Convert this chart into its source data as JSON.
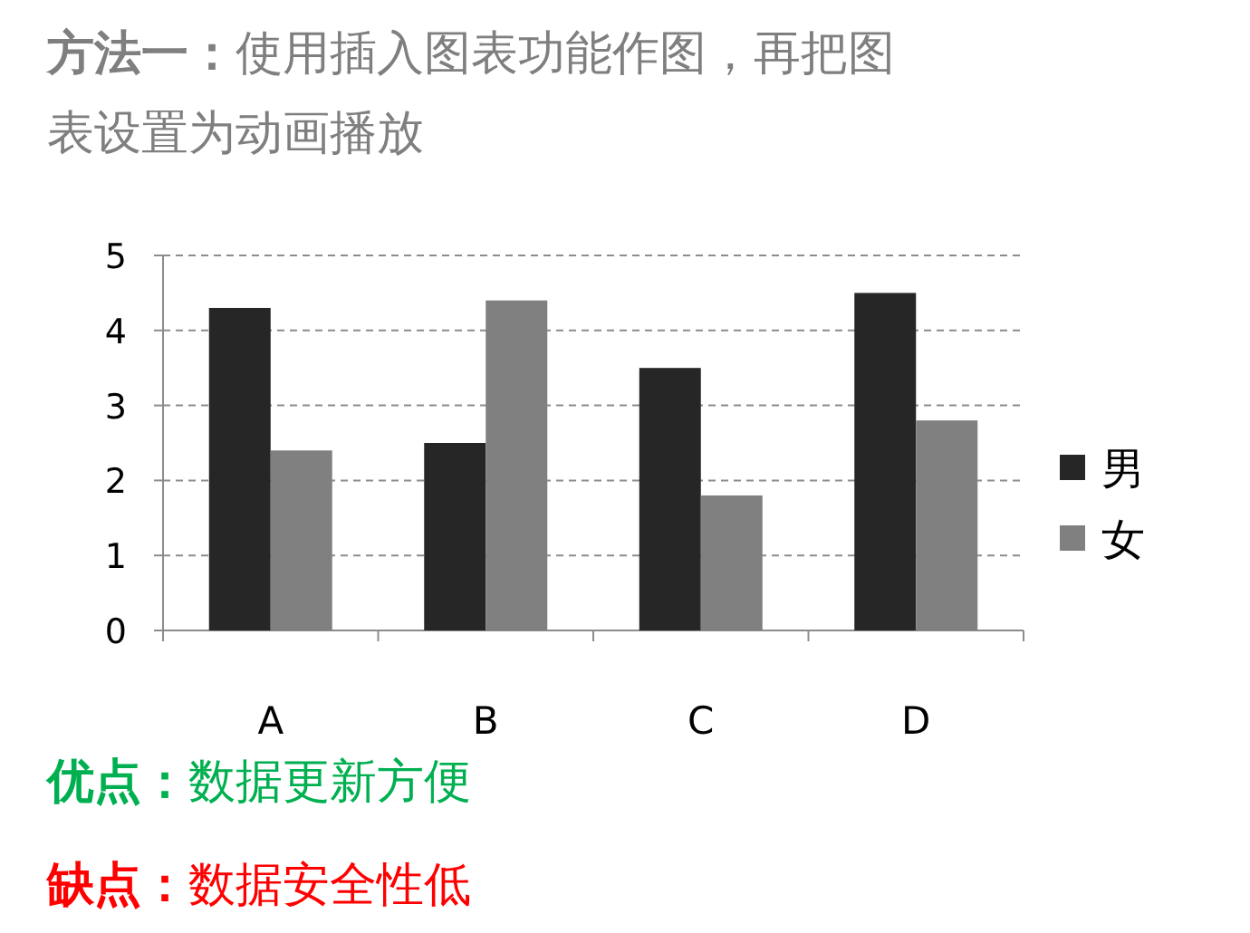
{
  "chart_data": {
    "type": "bar",
    "title": "方法一：使用插入图表功能作图，再把图表设置为动画播放",
    "categories": [
      "A",
      "B",
      "C",
      "D"
    ],
    "series": [
      {
        "name": "男",
        "color": "#262626",
        "values": [
          4.3,
          2.5,
          3.5,
          4.5
        ]
      },
      {
        "name": "女",
        "color": "#808080",
        "values": [
          2.4,
          4.4,
          1.8,
          2.8
        ]
      }
    ],
    "ylim": [
      0,
      5
    ],
    "yticks": [
      0,
      1,
      2,
      3,
      4,
      5
    ],
    "grid": "y",
    "legend": "right",
    "annotations": [
      "优点：数据更新方便",
      "缺点：数据安全性低"
    ]
  }
}
